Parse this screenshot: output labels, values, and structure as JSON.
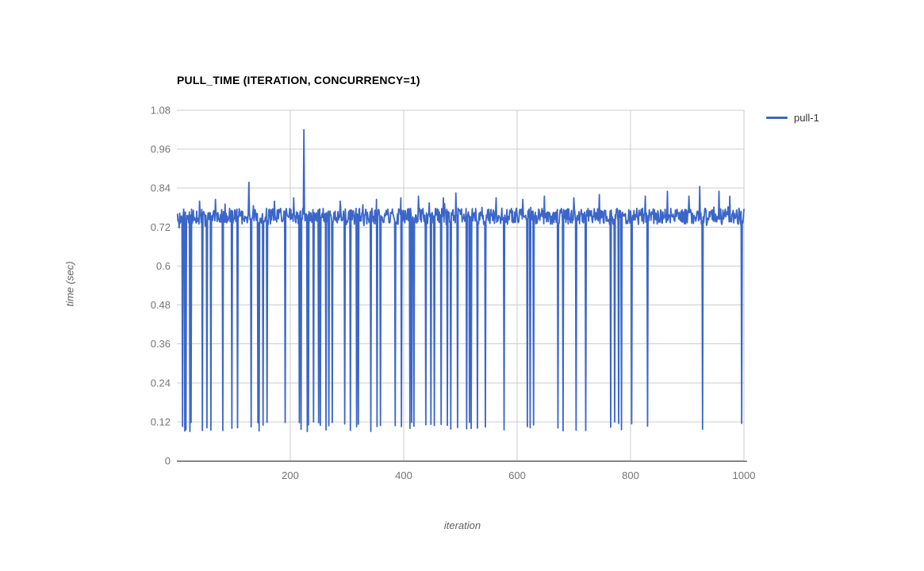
{
  "page": {
    "background": "#ffffff"
  },
  "chart_data": {
    "type": "line",
    "title": "PULL_TIME (ITERATION, CONCURRENCY=1)",
    "xlabel": "iteration",
    "ylabel": "time (sec)",
    "xlim": [
      0,
      1000
    ],
    "ylim": [
      0,
      1.08
    ],
    "x_ticks": [
      "200",
      "400",
      "600",
      "800",
      "1000"
    ],
    "y_ticks": [
      "0",
      "0.12",
      "0.24",
      "0.36",
      "0.48",
      "0.6",
      "0.72",
      "0.84",
      "0.96",
      "1.08"
    ],
    "grid": true,
    "legend_position": "right",
    "colors": {
      "gridline": "#cccccc",
      "axis_line": "#333333",
      "tick_label": "#757575",
      "axis_title": "#616161",
      "title": "#000000",
      "legend_text": "#333333"
    },
    "series": [
      {
        "name": "pull-1",
        "color": "#3b66c9",
        "points_count": 1000,
        "baseline": {
          "min": 0.728,
          "max": 0.778
        },
        "dip_value_range": [
          0.09,
          0.12
        ],
        "dips_x": [
          10,
          14,
          16,
          23,
          25,
          45,
          53,
          60,
          81,
          97,
          107,
          131,
          143,
          145,
          152,
          159,
          191,
          216,
          219,
          230,
          232,
          241,
          250,
          253,
          263,
          268,
          274,
          296,
          306,
          317,
          320,
          342,
          353,
          359,
          385,
          396,
          411,
          414,
          418,
          439,
          448,
          454,
          466,
          477,
          483,
          495,
          511,
          516,
          519,
          530,
          544,
          577,
          618,
          623,
          629,
          672,
          681,
          704,
          721,
          765,
          772,
          779,
          784,
          802,
          830,
          927,
          996
        ],
        "minor_peaks": [
          {
            "x": 40,
            "y": 0.8
          },
          {
            "x": 68,
            "y": 0.805
          },
          {
            "x": 127,
            "y": 0.858
          },
          {
            "x": 172,
            "y": 0.8
          },
          {
            "x": 206,
            "y": 0.81
          },
          {
            "x": 288,
            "y": 0.8
          },
          {
            "x": 352,
            "y": 0.805
          },
          {
            "x": 395,
            "y": 0.81
          },
          {
            "x": 426,
            "y": 0.815
          },
          {
            "x": 470,
            "y": 0.81
          },
          {
            "x": 492,
            "y": 0.825
          },
          {
            "x": 563,
            "y": 0.81
          },
          {
            "x": 610,
            "y": 0.805
          },
          {
            "x": 648,
            "y": 0.815
          },
          {
            "x": 700,
            "y": 0.81
          },
          {
            "x": 745,
            "y": 0.82
          },
          {
            "x": 826,
            "y": 0.815
          },
          {
            "x": 865,
            "y": 0.83
          },
          {
            "x": 903,
            "y": 0.815
          },
          {
            "x": 922,
            "y": 0.845
          },
          {
            "x": 956,
            "y": 0.83
          },
          {
            "x": 975,
            "y": 0.815
          }
        ],
        "peaks": [
          {
            "x": 224,
            "y": 1.02
          }
        ]
      }
    ]
  }
}
